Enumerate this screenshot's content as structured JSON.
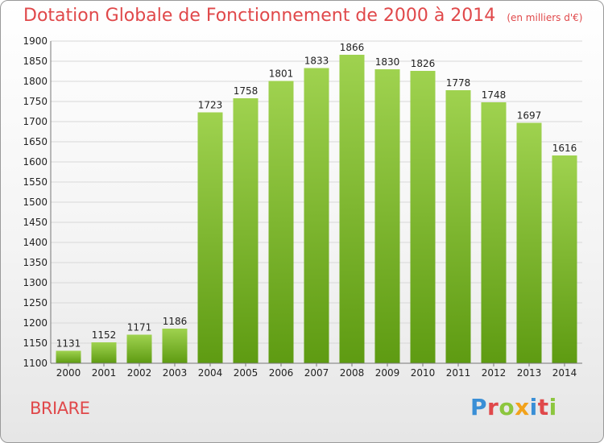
{
  "header": {
    "title": "Dotation Globale de Fonctionnement de 2000 à 2014",
    "subtitle": "(en milliers d'€)"
  },
  "footer": {
    "commune": "BRIARE",
    "logo_text": "Proxiti",
    "logo_colors": [
      "#3a8fd6",
      "#e0484a",
      "#8cc63e",
      "#f2a21b",
      "#3a8fd6",
      "#e0484a",
      "#8cc63e"
    ]
  },
  "colors": {
    "bar_top": "#9fd24f",
    "bar_bottom": "#5e9b12",
    "grid": "#d8d8d8",
    "axis": "#777777",
    "text": "#222222",
    "accent": "#e0484a"
  },
  "chart_data": {
    "type": "bar",
    "categories": [
      "2000",
      "2001",
      "2002",
      "2003",
      "2004",
      "2005",
      "2006",
      "2007",
      "2008",
      "2009",
      "2010",
      "2011",
      "2012",
      "2013",
      "2014"
    ],
    "values": [
      1131,
      1152,
      1171,
      1186,
      1723,
      1758,
      1801,
      1833,
      1866,
      1830,
      1826,
      1778,
      1748,
      1697,
      1616
    ],
    "ylim": [
      1100,
      1900
    ],
    "yticks": [
      1100,
      1150,
      1200,
      1250,
      1300,
      1350,
      1400,
      1450,
      1500,
      1550,
      1600,
      1650,
      1700,
      1750,
      1800,
      1850,
      1900
    ],
    "grid": true,
    "data_labels": true
  }
}
